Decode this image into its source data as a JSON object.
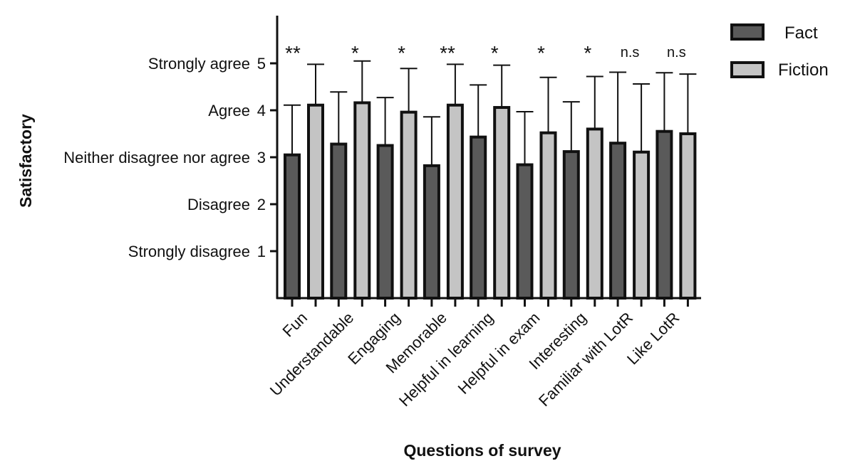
{
  "chart_data": {
    "type": "bar",
    "xlabel": "Questions of survey",
    "ylabel": "Satisfactory",
    "ylim": [
      0,
      6
    ],
    "yticks": [
      {
        "value": 1,
        "number": "1",
        "text": "Strongly disagree"
      },
      {
        "value": 2,
        "number": "2",
        "text": "Disagree"
      },
      {
        "value": 3,
        "number": "3",
        "text": "Neither disagree nor agree"
      },
      {
        "value": 4,
        "number": "4",
        "text": "Agree"
      },
      {
        "value": 5,
        "number": "5",
        "text": "Strongly agree"
      }
    ],
    "categories": [
      "Fun",
      "Understandable",
      "Engaging",
      "Memorable",
      "Helpful in learning",
      "Helpful in exam",
      "Interesting",
      "Familiar with LotR",
      "Like LotR"
    ],
    "series": [
      {
        "name": "Fact",
        "color": "#5a5a5a",
        "values": [
          3.05,
          3.28,
          3.25,
          2.82,
          3.43,
          2.84,
          3.12,
          3.3,
          3.55
        ],
        "error_upper": [
          4.11,
          4.39,
          4.27,
          3.86,
          4.54,
          3.97,
          4.18,
          4.81,
          4.8
        ]
      },
      {
        "name": "Fiction",
        "color": "#c4c4c4",
        "values": [
          4.11,
          4.16,
          3.96,
          4.11,
          4.06,
          3.52,
          3.6,
          3.11,
          3.5
        ],
        "error_upper": [
          4.98,
          5.05,
          4.89,
          4.98,
          4.96,
          4.7,
          4.72,
          4.56,
          4.77
        ]
      }
    ],
    "significance": [
      "**",
      "*",
      "*",
      "**",
      "*",
      "*",
      "*",
      "n.s",
      "n.s"
    ],
    "grid": false,
    "legend_position": "top-right"
  }
}
